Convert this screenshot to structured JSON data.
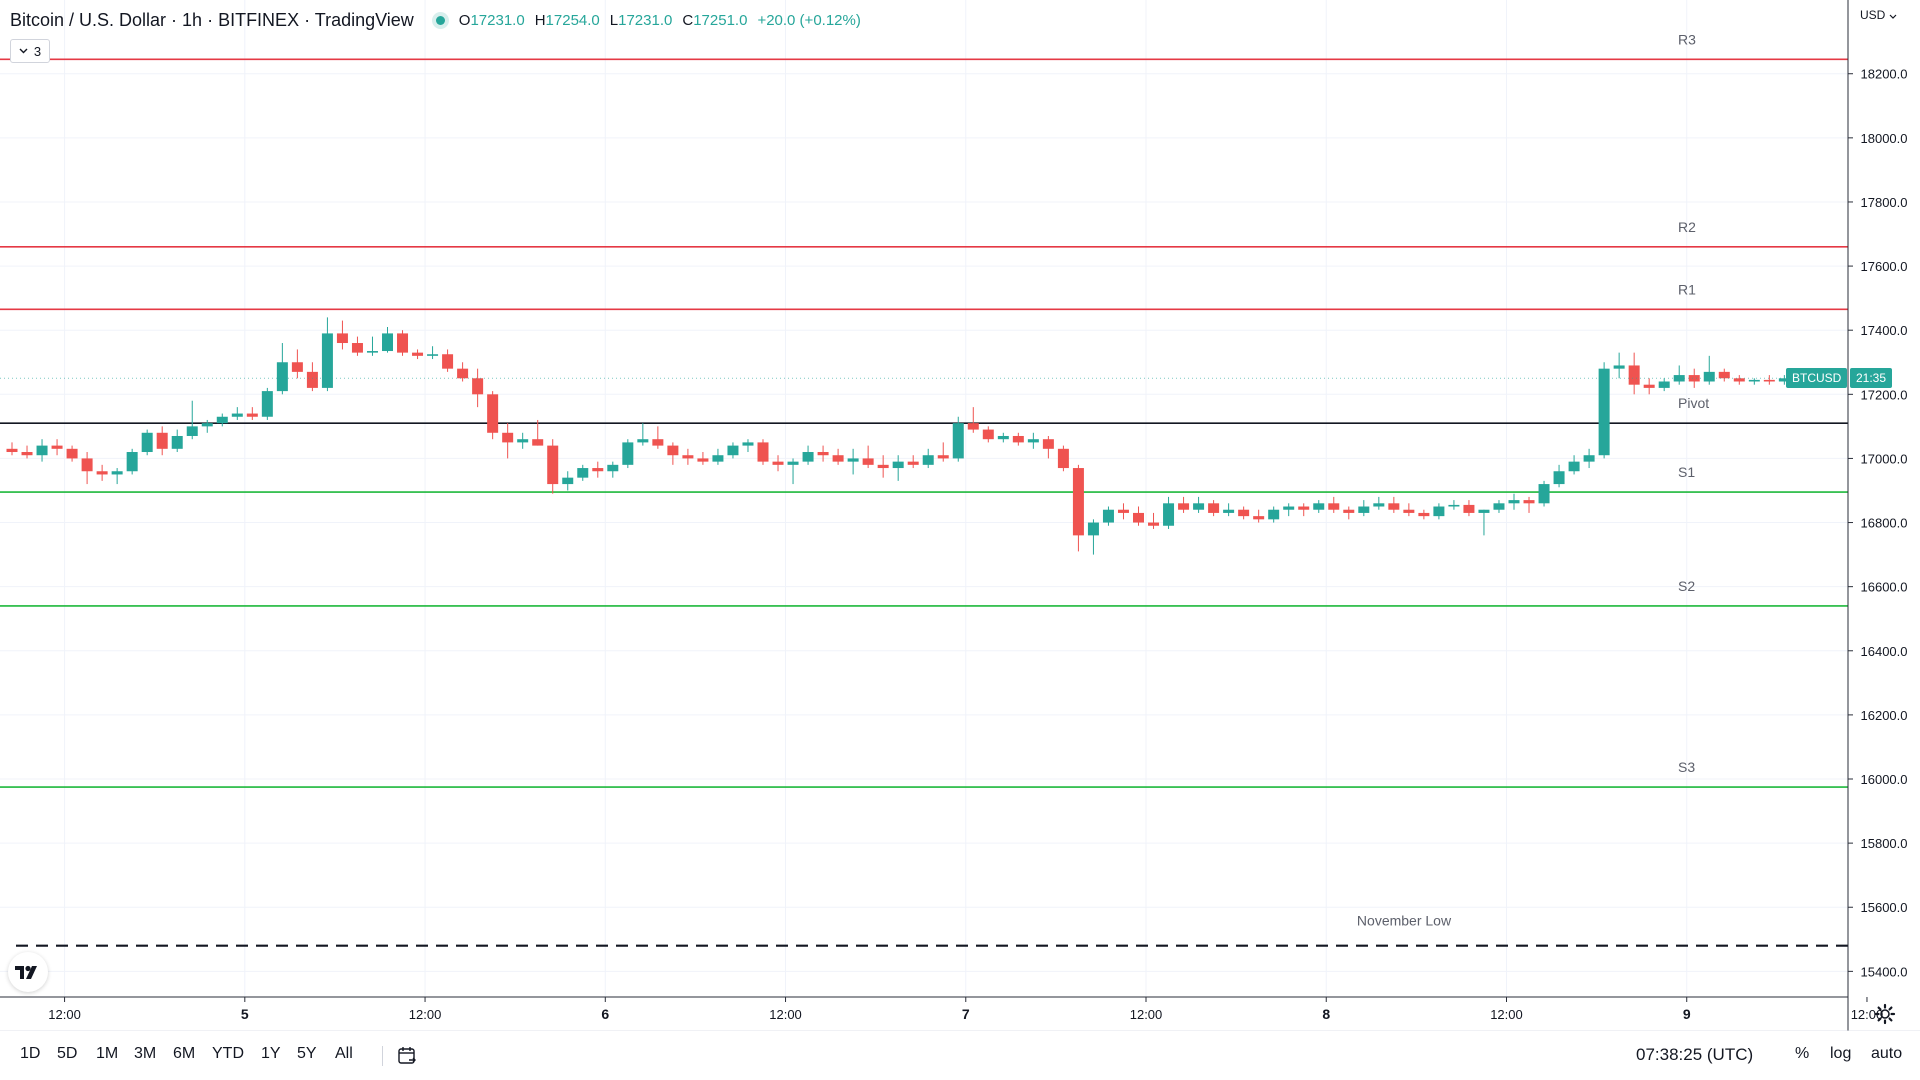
{
  "header": {
    "title": "Bitcoin / U.S. Dollar · 1h · BITFINEX · TradingView",
    "ohlc": [
      {
        "key": "O",
        "value": "17231.0"
      },
      {
        "key": "H",
        "value": "17254.0"
      },
      {
        "key": "L",
        "value": "17231.0"
      },
      {
        "key": "C",
        "value": "17251.0"
      }
    ],
    "change": "+20.0 (+0.12%)",
    "indicators_count": "3",
    "status_color": "#26a69a"
  },
  "price_axis": {
    "currency": "USD",
    "ticks": [
      "18200.0",
      "18000.0",
      "17800.0",
      "17600.0",
      "17400.0",
      "17200.0",
      "17000.0",
      "16800.0",
      "16600.0",
      "16400.0",
      "16200.0",
      "16000.0",
      "15800.0",
      "15600.0",
      "15400.0"
    ],
    "symbol_badge": "BTCUSD",
    "countdown_badge": "21:35"
  },
  "time_axis": {
    "ticks": [
      "12:00",
      "5",
      "12:00",
      "6",
      "12:00",
      "7",
      "12:00",
      "8",
      "12:00",
      "9",
      "12:00"
    ]
  },
  "bottom_bar": {
    "ranges": [
      "1D",
      "5D",
      "1M",
      "3M",
      "6M",
      "YTD",
      "1Y",
      "5Y",
      "All"
    ],
    "clock": "07:38:25 (UTC)",
    "percent_label": "%",
    "log_label": "log",
    "auto_label": "auto"
  },
  "colors": {
    "up": "#26a69a",
    "down": "#ef5350",
    "resistance": "#e53945",
    "support": "#1eb83c",
    "pivot": "#131722"
  },
  "chart_data": {
    "type": "candlestick",
    "symbol": "BTCUSD",
    "interval": "1h",
    "ylim": [
      15320,
      18430
    ],
    "x_ticks": [
      {
        "i": 3.5,
        "label": "12:00"
      },
      {
        "i": 15.5,
        "label": "5"
      },
      {
        "i": 27.5,
        "label": "12:00"
      },
      {
        "i": 39.5,
        "label": "6"
      },
      {
        "i": 51.5,
        "label": "12:00"
      },
      {
        "i": 63.5,
        "label": "7"
      },
      {
        "i": 75.5,
        "label": "12:00"
      },
      {
        "i": 87.5,
        "label": "8"
      },
      {
        "i": 99.5,
        "label": "12:00"
      },
      {
        "i": 111.5,
        "label": "9"
      },
      {
        "i": 123.5,
        "label": "12:00"
      }
    ],
    "levels": [
      {
        "name": "R3",
        "value": 18245,
        "kind": "resistance"
      },
      {
        "name": "R2",
        "value": 17660,
        "kind": "resistance"
      },
      {
        "name": "R1",
        "value": 17465,
        "kind": "resistance"
      },
      {
        "name": "Pivot",
        "value": 17110,
        "kind": "pivot"
      },
      {
        "name": "S1",
        "value": 16895,
        "kind": "support"
      },
      {
        "name": "S2",
        "value": 16540,
        "kind": "support"
      },
      {
        "name": "S3",
        "value": 15975,
        "kind": "support"
      },
      {
        "name": "November Low",
        "value": 15480,
        "kind": "dashed"
      }
    ],
    "candles": [
      [
        17030,
        17050,
        17010,
        17020
      ],
      [
        17020,
        17040,
        17000,
        17010
      ],
      [
        17010,
        17060,
        16990,
        17040
      ],
      [
        17040,
        17060,
        17010,
        17030
      ],
      [
        17030,
        17040,
        16990,
        17000
      ],
      [
        17000,
        17020,
        16920,
        16960
      ],
      [
        16960,
        16980,
        16930,
        16950
      ],
      [
        16950,
        16970,
        16920,
        16960
      ],
      [
        16960,
        17030,
        16950,
        17020
      ],
      [
        17020,
        17090,
        17010,
        17080
      ],
      [
        17080,
        17100,
        17010,
        17030
      ],
      [
        17030,
        17090,
        17020,
        17070
      ],
      [
        17070,
        17180,
        17060,
        17100
      ],
      [
        17100,
        17120,
        17080,
        17110
      ],
      [
        17110,
        17140,
        17100,
        17130
      ],
      [
        17130,
        17160,
        17120,
        17140
      ],
      [
        17140,
        17160,
        17120,
        17130
      ],
      [
        17130,
        17220,
        17120,
        17210
      ],
      [
        17210,
        17360,
        17200,
        17300
      ],
      [
        17300,
        17340,
        17250,
        17270
      ],
      [
        17270,
        17300,
        17210,
        17220
      ],
      [
        17220,
        17440,
        17210,
        17390
      ],
      [
        17390,
        17430,
        17340,
        17360
      ],
      [
        17360,
        17380,
        17320,
        17330
      ],
      [
        17330,
        17380,
        17320,
        17335
      ],
      [
        17335,
        17410,
        17330,
        17390
      ],
      [
        17390,
        17400,
        17320,
        17330
      ],
      [
        17330,
        17340,
        17310,
        17320
      ],
      [
        17320,
        17350,
        17310,
        17325
      ],
      [
        17325,
        17340,
        17270,
        17280
      ],
      [
        17280,
        17300,
        17240,
        17250
      ],
      [
        17250,
        17280,
        17160,
        17200
      ],
      [
        17200,
        17210,
        17060,
        17080
      ],
      [
        17080,
        17110,
        17000,
        17050
      ],
      [
        17050,
        17080,
        17030,
        17060
      ],
      [
        17060,
        17120,
        17040,
        17040
      ],
      [
        17040,
        17060,
        16890,
        16920
      ],
      [
        16920,
        16960,
        16900,
        16940
      ],
      [
        16940,
        16980,
        16930,
        16970
      ],
      [
        16970,
        16990,
        16940,
        16960
      ],
      [
        16960,
        16990,
        16940,
        16980
      ],
      [
        16980,
        17060,
        16970,
        17050
      ],
      [
        17050,
        17110,
        17040,
        17060
      ],
      [
        17060,
        17100,
        17030,
        17040
      ],
      [
        17040,
        17050,
        16980,
        17010
      ],
      [
        17010,
        17030,
        16980,
        17000
      ],
      [
        17000,
        17020,
        16980,
        16990
      ],
      [
        16990,
        17030,
        16980,
        17010
      ],
      [
        17010,
        17050,
        17000,
        17040
      ],
      [
        17040,
        17060,
        17020,
        17050
      ],
      [
        17050,
        17060,
        16980,
        16990
      ],
      [
        16990,
        17010,
        16960,
        16980
      ],
      [
        16980,
        17000,
        16920,
        16990
      ],
      [
        16990,
        17040,
        16980,
        17020
      ],
      [
        17020,
        17040,
        16990,
        17010
      ],
      [
        17010,
        17030,
        16980,
        16990
      ],
      [
        16990,
        17030,
        16950,
        17000
      ],
      [
        17000,
        17040,
        16970,
        16980
      ],
      [
        16980,
        17010,
        16940,
        16970
      ],
      [
        16970,
        17010,
        16930,
        16990
      ],
      [
        16990,
        17010,
        16970,
        16980
      ],
      [
        16980,
        17030,
        16970,
        17010
      ],
      [
        17010,
        17050,
        16990,
        17000
      ],
      [
        17000,
        17130,
        16990,
        17110
      ],
      [
        17110,
        17160,
        17080,
        17090
      ],
      [
        17090,
        17100,
        17050,
        17060
      ],
      [
        17060,
        17080,
        17050,
        17070
      ],
      [
        17070,
        17080,
        17040,
        17050
      ],
      [
        17050,
        17080,
        17030,
        17060
      ],
      [
        17060,
        17070,
        17000,
        17030
      ],
      [
        17030,
        17040,
        16960,
        16970
      ],
      [
        16970,
        16980,
        16710,
        16760
      ],
      [
        16760,
        16810,
        16700,
        16800
      ],
      [
        16800,
        16850,
        16790,
        16840
      ],
      [
        16840,
        16860,
        16810,
        16830
      ],
      [
        16830,
        16850,
        16790,
        16800
      ],
      [
        16800,
        16830,
        16780,
        16790
      ],
      [
        16790,
        16880,
        16780,
        16860
      ],
      [
        16860,
        16880,
        16830,
        16840
      ],
      [
        16840,
        16880,
        16830,
        16860
      ],
      [
        16860,
        16870,
        16820,
        16830
      ],
      [
        16830,
        16860,
        16820,
        16840
      ],
      [
        16840,
        16850,
        16810,
        16820
      ],
      [
        16820,
        16840,
        16800,
        16810
      ],
      [
        16810,
        16850,
        16800,
        16840
      ],
      [
        16840,
        16860,
        16820,
        16850
      ],
      [
        16850,
        16860,
        16820,
        16840
      ],
      [
        16840,
        16870,
        16830,
        16860
      ],
      [
        16860,
        16880,
        16830,
        16840
      ],
      [
        16840,
        16850,
        16810,
        16830
      ],
      [
        16830,
        16870,
        16820,
        16850
      ],
      [
        16850,
        16880,
        16840,
        16860
      ],
      [
        16860,
        16880,
        16830,
        16840
      ],
      [
        16840,
        16860,
        16820,
        16830
      ],
      [
        16830,
        16840,
        16810,
        16820
      ],
      [
        16820,
        16860,
        16810,
        16850
      ],
      [
        16850,
        16870,
        16840,
        16855
      ],
      [
        16855,
        16870,
        16820,
        16830
      ],
      [
        16830,
        16840,
        16760,
        16840
      ],
      [
        16840,
        16870,
        16830,
        16860
      ],
      [
        16860,
        16890,
        16840,
        16870
      ],
      [
        16870,
        16880,
        16830,
        16860
      ],
      [
        16860,
        16930,
        16850,
        16920
      ],
      [
        16920,
        16980,
        16910,
        16960
      ],
      [
        16960,
        17010,
        16950,
        16990
      ],
      [
        16990,
        17030,
        16970,
        17010
      ],
      [
        17010,
        17300,
        17000,
        17280
      ],
      [
        17280,
        17330,
        17250,
        17290
      ],
      [
        17290,
        17330,
        17200,
        17230
      ],
      [
        17230,
        17250,
        17200,
        17220
      ],
      [
        17220,
        17250,
        17210,
        17240
      ],
      [
        17240,
        17290,
        17230,
        17260
      ],
      [
        17260,
        17280,
        17220,
        17240
      ],
      [
        17240,
        17320,
        17230,
        17270
      ],
      [
        17270,
        17280,
        17240,
        17250
      ],
      [
        17250,
        17260,
        17230,
        17240
      ],
      [
        17240,
        17250,
        17230,
        17245
      ],
      [
        17245,
        17260,
        17230,
        17240
      ],
      [
        17240,
        17260,
        17230,
        17250
      ]
    ]
  }
}
